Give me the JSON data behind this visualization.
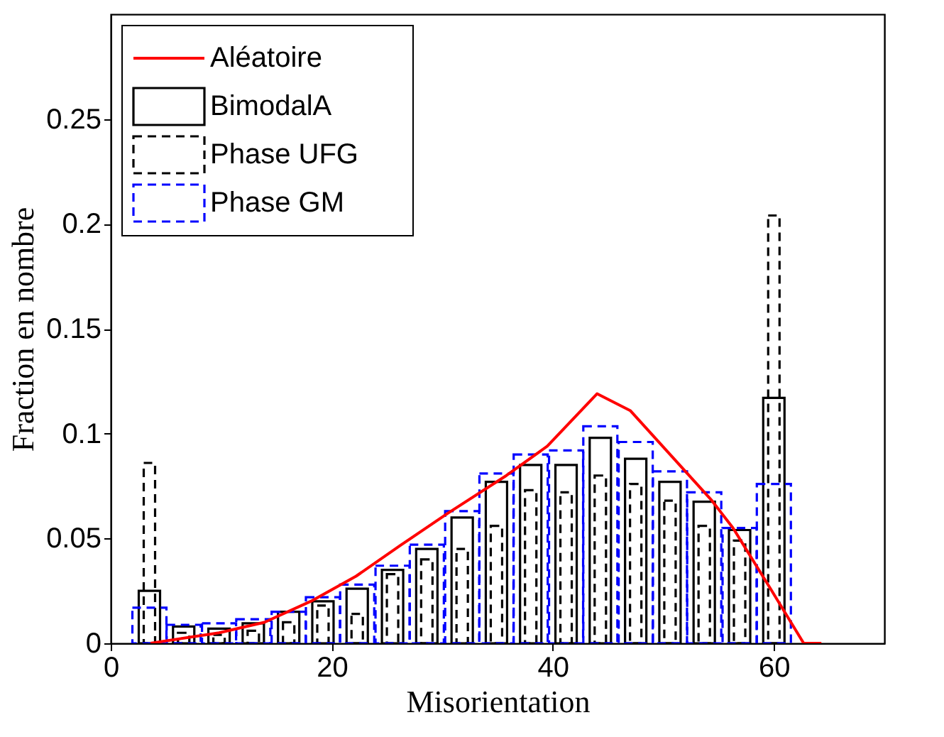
{
  "chart_data": {
    "type": "bar",
    "xlabel": "Misorientation",
    "ylabel": "Fraction en nombre",
    "x": [
      3.5,
      6.6,
      9.8,
      12.9,
      16.1,
      19.2,
      22.3,
      25.5,
      28.6,
      31.8,
      34.9,
      38.0,
      41.2,
      44.3,
      47.5,
      50.6,
      53.7,
      56.9,
      60.0
    ],
    "series": [
      {
        "name": "Aléatoire",
        "type": "line",
        "color": "#ff0000",
        "x": [
          3.6,
          9.8,
          13.9,
          18.1,
          22.2,
          26.3,
          30.5,
          35.8,
          39.5,
          44.0,
          47.0,
          54.4,
          56.3,
          59.7,
          62.7,
          64.3
        ],
        "values": [
          0,
          0.005,
          0.01,
          0.02,
          0.032,
          0.047,
          0.062,
          0.08,
          0.094,
          0.119,
          0.111,
          0.068,
          0.055,
          0.026,
          0,
          0
        ]
      },
      {
        "name": "BimodalA",
        "color": "#000000",
        "line_style": "solid",
        "values": [
          0.025,
          0.008,
          0.007,
          0.0095,
          0.015,
          0.02,
          0.026,
          0.035,
          0.045,
          0.06,
          0.077,
          0.085,
          0.085,
          0.098,
          0.088,
          0.077,
          0.0675,
          0.054,
          0.117
        ]
      },
      {
        "name": "Phase UFG",
        "color": "#000000",
        "line_style": "dashed",
        "values": [
          0.086,
          0.005,
          0.004,
          0.006,
          0.01,
          0.018,
          0.014,
          0.033,
          0.04,
          0.045,
          0.056,
          0.073,
          0.072,
          0.08,
          0.076,
          0.068,
          0.056,
          0.049,
          0.204
        ]
      },
      {
        "name": "Phase GM",
        "color": "#0000ff",
        "line_style": "dashed",
        "values": [
          0.017,
          0.0088,
          0.0095,
          0.0115,
          0.015,
          0.022,
          0.028,
          0.037,
          0.047,
          0.063,
          0.081,
          0.09,
          0.092,
          0.1035,
          0.096,
          0.082,
          0.072,
          0.055,
          0.076
        ]
      }
    ],
    "xlim": [
      0,
      70
    ],
    "xticks": [
      0,
      20,
      40,
      60
    ],
    "ylim": [
      0,
      0.3
    ],
    "yticks": [
      0,
      0.05,
      0.1,
      0.15,
      0.2,
      0.25
    ],
    "legend": "top left",
    "grid": false
  }
}
